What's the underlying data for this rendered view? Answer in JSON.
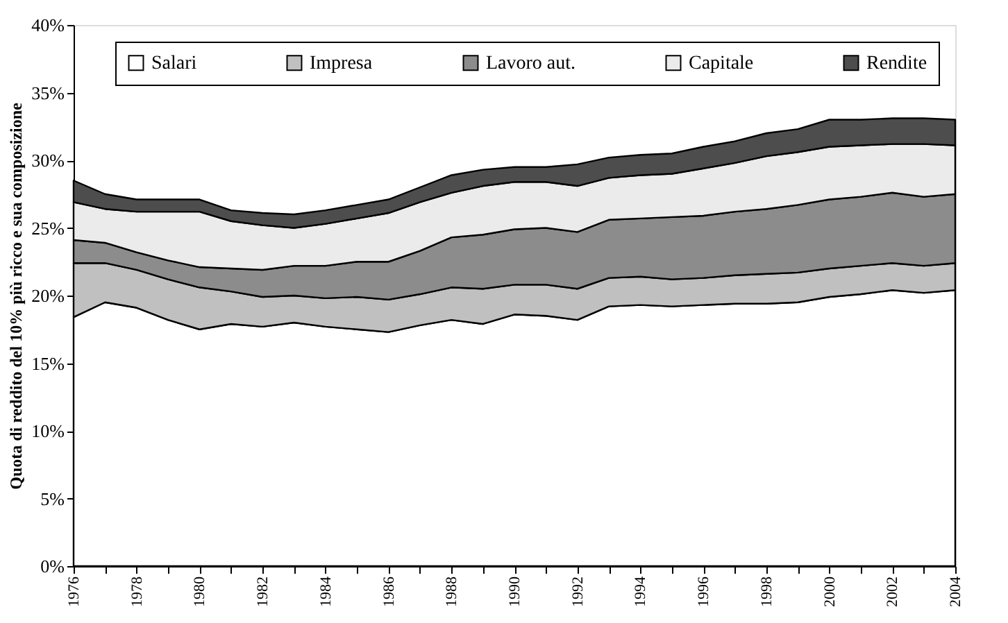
{
  "chart_data": {
    "type": "area",
    "stacked": true,
    "ylabel": "Quota di reddito del 10% più ricco e sua composizione",
    "x": [
      1976,
      1977,
      1978,
      1979,
      1980,
      1981,
      1982,
      1983,
      1984,
      1985,
      1986,
      1987,
      1988,
      1989,
      1990,
      1991,
      1992,
      1993,
      1994,
      1995,
      1996,
      1997,
      1998,
      1999,
      2000,
      2001,
      2002,
      2003,
      2004
    ],
    "series": [
      {
        "name": "Salari",
        "color": "#ffffff",
        "values": [
          18.4,
          19.5,
          19.1,
          18.2,
          17.5,
          17.9,
          17.7,
          18.0,
          17.7,
          17.5,
          17.3,
          17.8,
          18.2,
          17.9,
          18.6,
          18.5,
          18.2,
          19.2,
          19.3,
          19.2,
          19.3,
          19.4,
          19.4,
          19.5,
          19.9,
          20.1,
          20.4,
          20.2,
          20.4
        ]
      },
      {
        "name": "Impresa",
        "color": "#c0c0c0",
        "values": [
          4.0,
          2.9,
          2.8,
          3.0,
          3.1,
          2.4,
          2.2,
          2.0,
          2.1,
          2.4,
          2.4,
          2.3,
          2.4,
          2.6,
          2.2,
          2.3,
          2.3,
          2.1,
          2.1,
          2.0,
          2.0,
          2.1,
          2.2,
          2.2,
          2.1,
          2.1,
          2.0,
          2.0,
          2.0
        ]
      },
      {
        "name": "Lavoro aut.",
        "color": "#8c8c8c",
        "values": [
          1.7,
          1.5,
          1.3,
          1.4,
          1.5,
          1.7,
          2.0,
          2.2,
          2.4,
          2.6,
          2.8,
          3.2,
          3.7,
          4.0,
          4.1,
          4.2,
          4.2,
          4.3,
          4.3,
          4.6,
          4.6,
          4.7,
          4.8,
          5.0,
          5.1,
          5.1,
          5.2,
          5.1,
          5.1
        ]
      },
      {
        "name": "Capitale",
        "color": "#ebebeb",
        "values": [
          2.8,
          2.5,
          3.0,
          3.6,
          4.1,
          3.5,
          3.3,
          2.8,
          3.1,
          3.2,
          3.6,
          3.6,
          3.3,
          3.6,
          3.5,
          3.4,
          3.4,
          3.1,
          3.2,
          3.2,
          3.5,
          3.6,
          3.9,
          3.9,
          3.9,
          3.8,
          3.6,
          3.9,
          3.6
        ]
      },
      {
        "name": "Rendite",
        "color": "#4d4d4d",
        "values": [
          1.6,
          1.1,
          0.9,
          0.9,
          0.9,
          0.8,
          0.9,
          1.0,
          1.0,
          1.0,
          1.0,
          1.1,
          1.3,
          1.2,
          1.1,
          1.1,
          1.6,
          1.5,
          1.5,
          1.5,
          1.6,
          1.6,
          1.7,
          1.7,
          2.0,
          1.9,
          1.9,
          1.9,
          1.9
        ]
      }
    ],
    "xlim": [
      1976,
      2004
    ],
    "xticks": [
      1976,
      {
        "value": 1977,
        "label": null
      },
      1978,
      {
        "value": 1979,
        "label": null
      },
      1980,
      {
        "value": 1981,
        "label": null
      },
      1982,
      {
        "value": 1983,
        "label": null
      },
      1984,
      {
        "value": 1985,
        "label": null
      },
      1986,
      {
        "value": 1987,
        "label": null
      },
      1988,
      {
        "value": 1989,
        "label": null
      },
      1990,
      {
        "value": 1991,
        "label": null
      },
      1992,
      {
        "value": 1993,
        "label": null
      },
      1994,
      {
        "value": 1995,
        "label": null
      },
      1996,
      {
        "value": 1997,
        "label": null
      },
      1998,
      {
        "value": 1999,
        "label": null
      },
      2000,
      {
        "value": 2001,
        "label": null
      },
      2002,
      {
        "value": 2003,
        "label": null
      },
      2004
    ],
    "ylim": [
      0,
      40
    ],
    "yticks": [
      {
        "value": 0,
        "label": "0%"
      },
      {
        "value": 5,
        "label": "5%"
      },
      {
        "value": 10,
        "label": "10%"
      },
      {
        "value": 15,
        "label": "15%"
      },
      {
        "value": 20,
        "label": "20%"
      },
      {
        "value": 25,
        "label": "25%"
      },
      {
        "value": 30,
        "label": "30%"
      },
      {
        "value": 35,
        "label": "35%"
      },
      {
        "value": 40,
        "label": "40%"
      }
    ],
    "legend": "top",
    "grid": false
  }
}
